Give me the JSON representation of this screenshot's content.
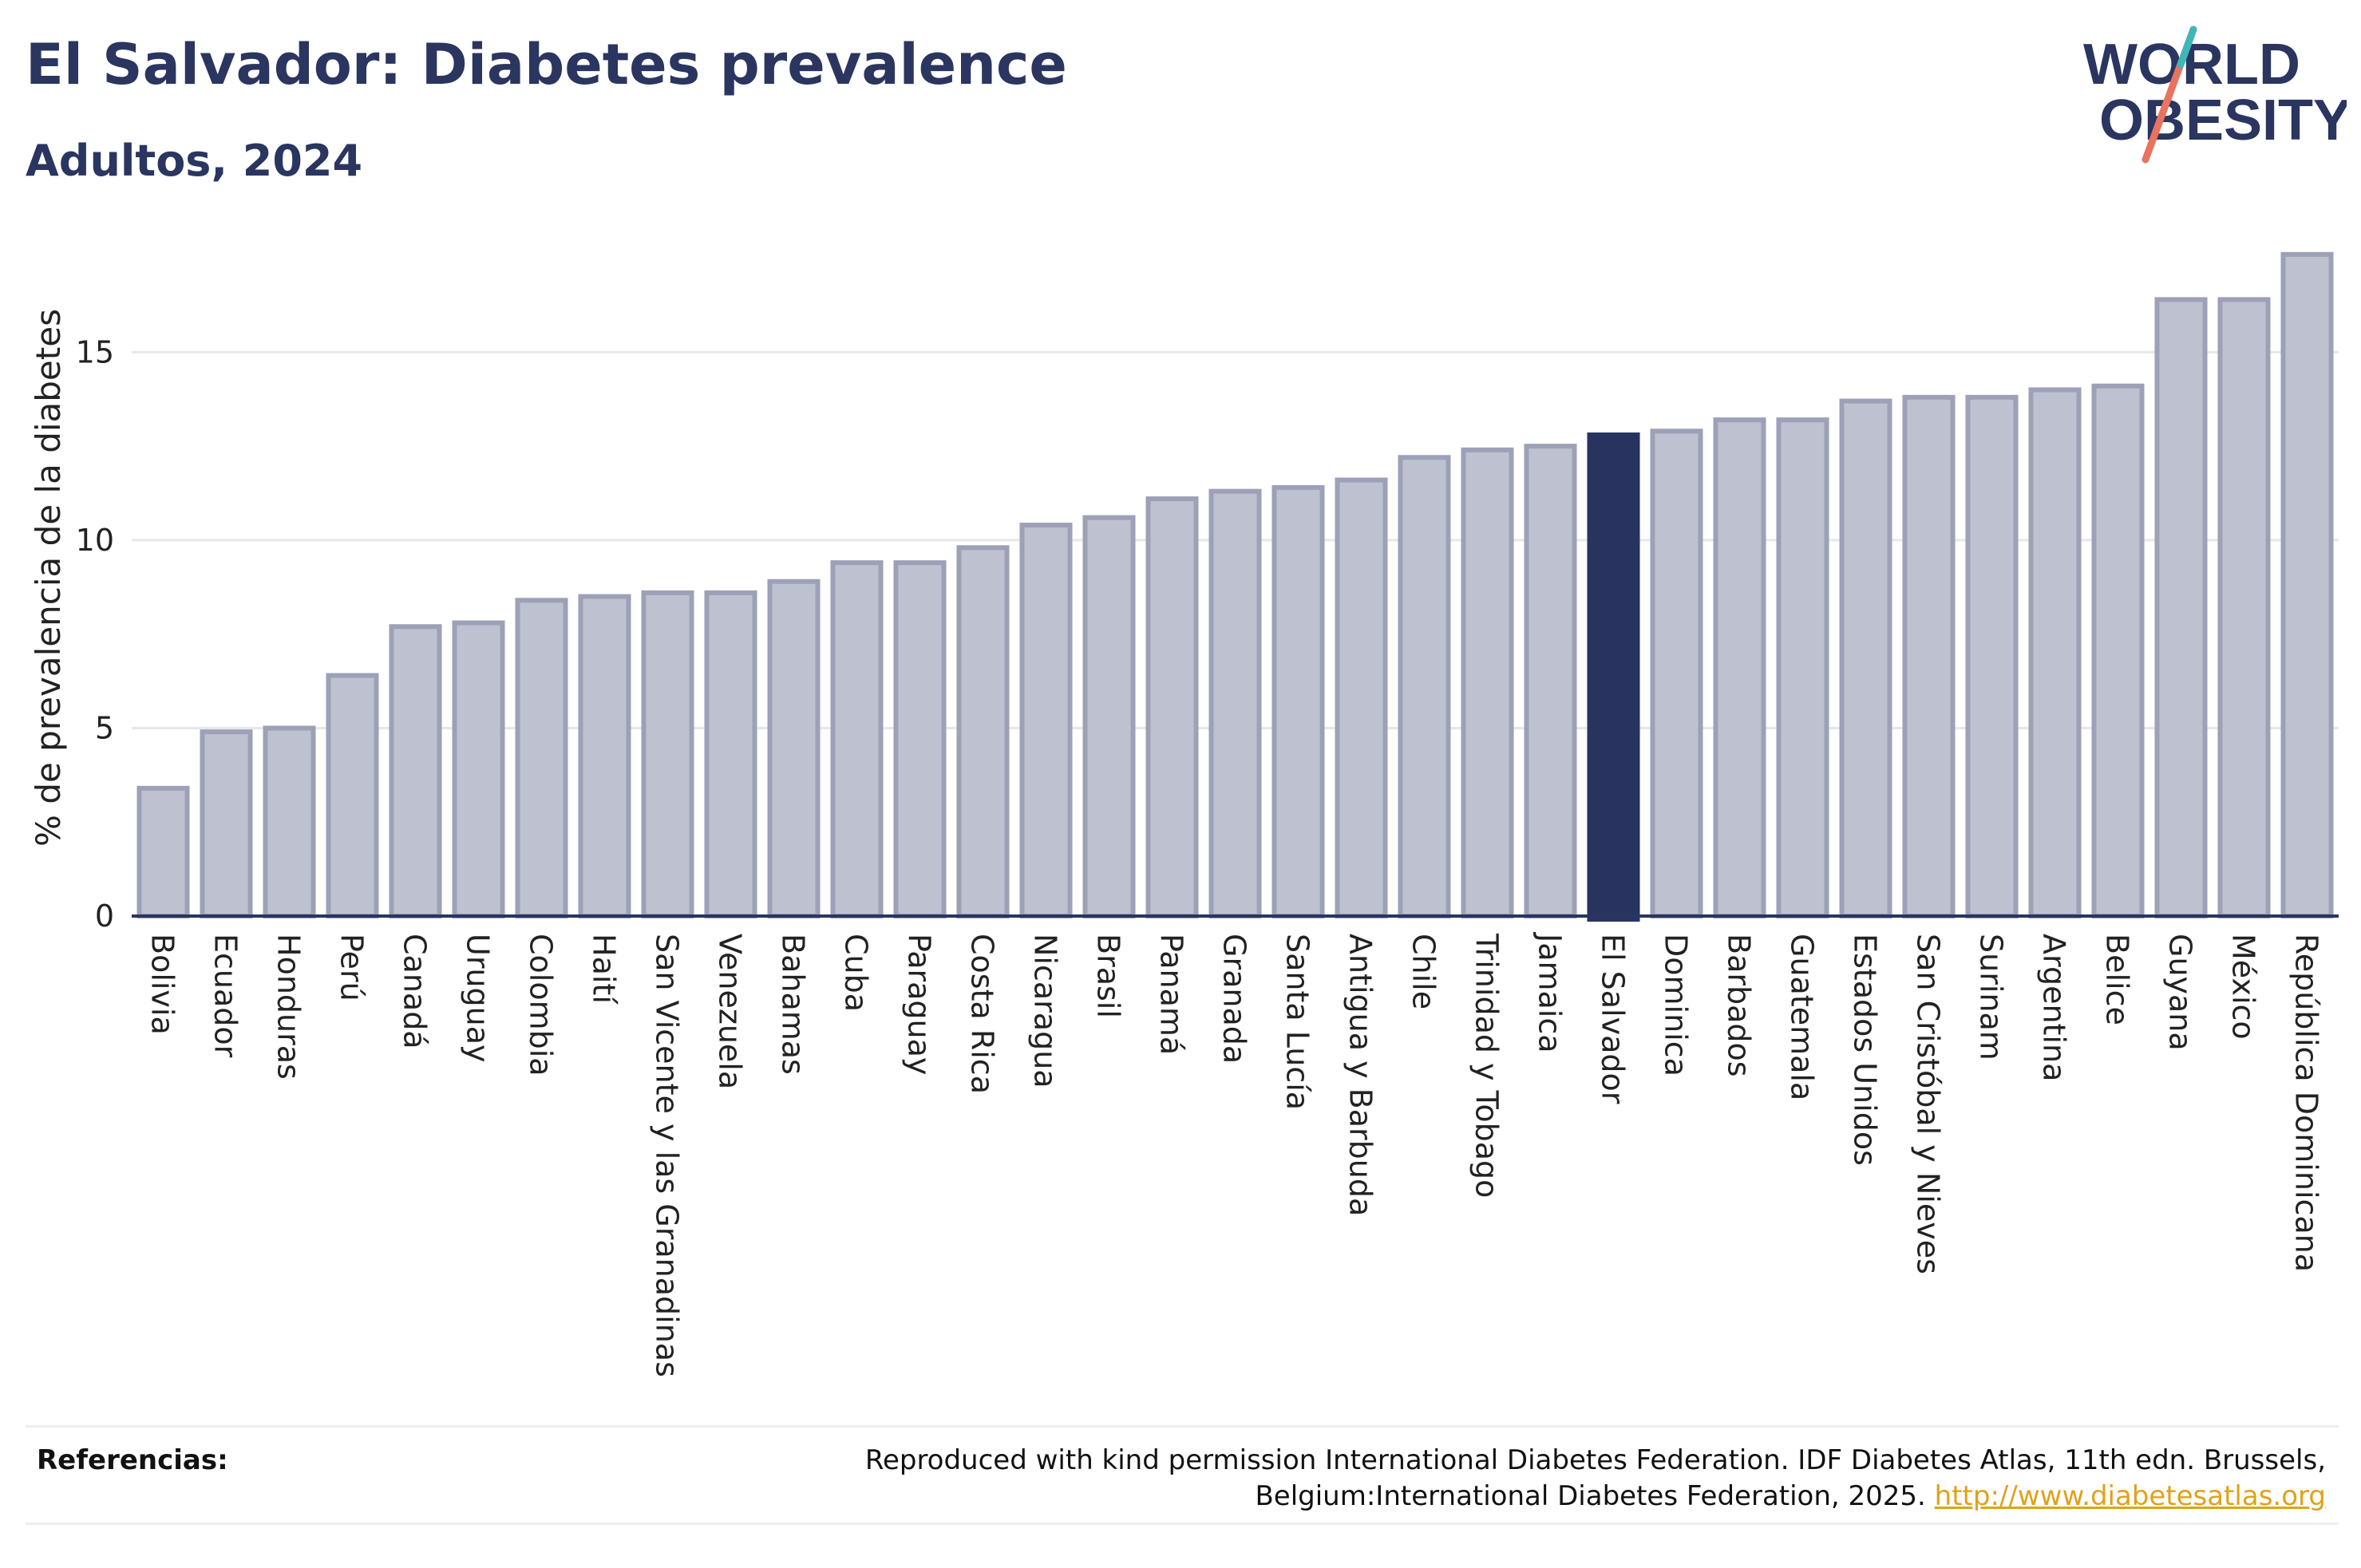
{
  "header": {
    "title": "El Salvador: Diabetes prevalence",
    "subtitle": "Adultos, 2024"
  },
  "logo": {
    "line1": "WORLD",
    "line2": "OBESITY"
  },
  "footer": {
    "label": "Referencias:",
    "text": "Reproduced with kind permission International Diabetes Federation. IDF Diabetes Atlas, 11th edn. Brussels, Belgium:International Diabetes Federation, 2025.",
    "link": "http://www.diabetesatlas.org"
  },
  "colors": {
    "bar": "#bec1cf",
    "bar_border": "#9ca1b7",
    "highlight": "#28345f",
    "grid": "#e6e7ea",
    "axis": "#2a3560"
  },
  "chart_data": {
    "type": "bar",
    "title": "El Salvador: Diabetes prevalence",
    "subtitle": "Adultos, 2024",
    "xlabel": "",
    "ylabel": "% de prevalencia de la diabetes",
    "ylim": [
      0,
      18
    ],
    "yticks": [
      0,
      5,
      10,
      15
    ],
    "grid": true,
    "highlight": "El Salvador",
    "categories": [
      "Bolivia",
      "Ecuador",
      "Honduras",
      "Perú",
      "Canadá",
      "Uruguay",
      "Colombia",
      "Haití",
      "San Vicente y las Granadinas",
      "Venezuela",
      "Bahamas",
      "Cuba",
      "Paraguay",
      "Costa Rica",
      "Nicaragua",
      "Brasil",
      "Panamá",
      "Granada",
      "Santa Lucía",
      "Antigua y Barbuda",
      "Chile",
      "Trinidad y Tobago",
      "Jamaica",
      "El Salvador",
      "Dominica",
      "Barbados",
      "Guatemala",
      "Estados Unidos",
      "San Cristóbal y Nieves",
      "Surinam",
      "Argentina",
      "Belice",
      "Guyana",
      "México",
      "República Dominicana"
    ],
    "values": [
      3.4,
      4.9,
      5.0,
      6.4,
      7.7,
      7.8,
      8.4,
      8.5,
      8.6,
      8.6,
      8.9,
      9.4,
      9.4,
      9.8,
      10.4,
      10.6,
      11.1,
      11.3,
      11.4,
      11.6,
      12.2,
      12.4,
      12.5,
      12.8,
      12.9,
      13.2,
      13.2,
      13.7,
      13.8,
      13.8,
      14.0,
      14.1,
      16.4,
      16.4,
      17.6
    ]
  }
}
